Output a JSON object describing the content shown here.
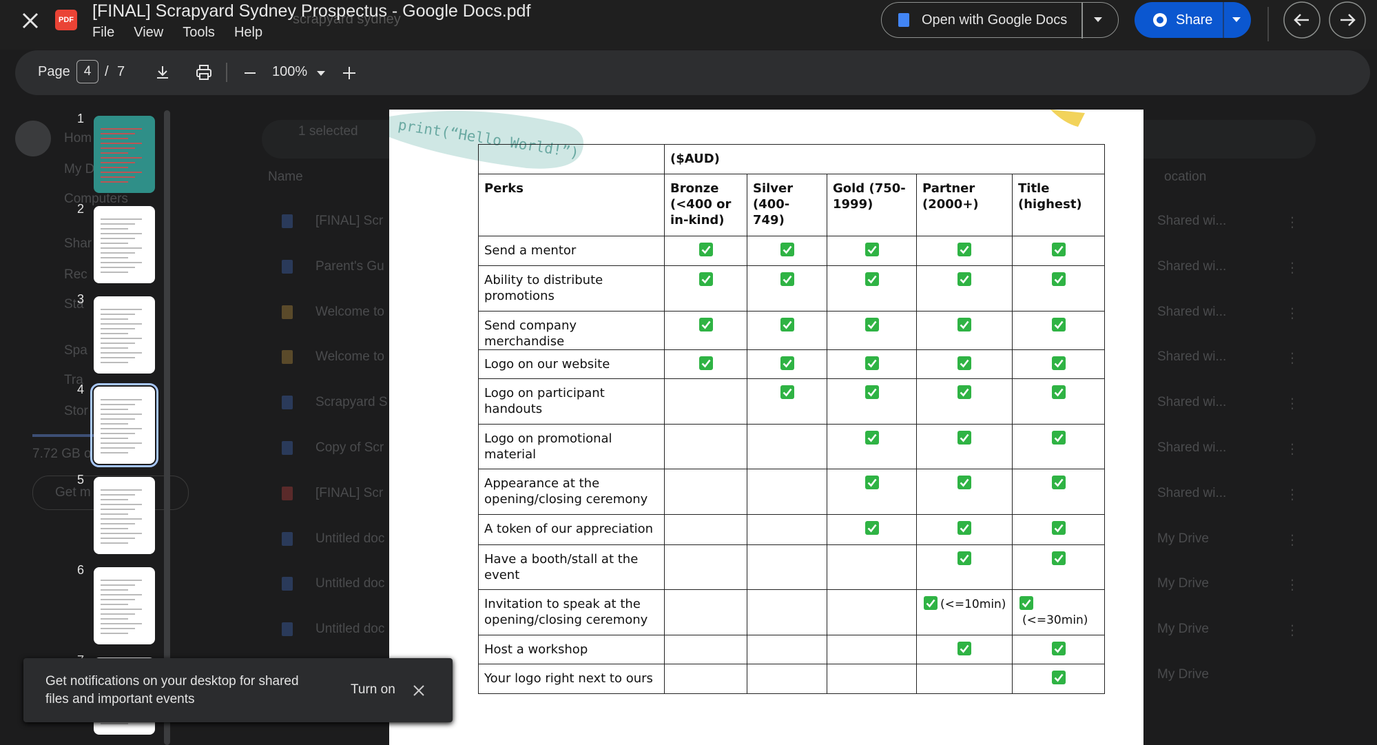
{
  "header": {
    "title": "[FINAL] Scrapyard Sydney Prospectus - Google Docs.pdf",
    "menu": [
      "File",
      "View",
      "Tools",
      "Help"
    ],
    "open_with": "Open with Google Docs",
    "share": "Share",
    "search_behind": "scrapyard sydney"
  },
  "toolbar": {
    "page_label": "Page",
    "current_page": 4,
    "separator": "/",
    "total_pages": 7,
    "zoom": "100%"
  },
  "thumbnails": [
    1,
    2,
    3,
    4,
    5,
    6,
    7
  ],
  "background": {
    "selected": "1 selected",
    "name_header": "Name",
    "location_header": "ocation",
    "sidebar": [
      "Hom",
      "My D",
      "Computers",
      "Shar",
      "Rec",
      "Sta",
      "Spa",
      "Tra",
      "Stor"
    ],
    "storage": "7.72 GB o",
    "get_more": "Get m",
    "files": [
      "[FINAL] Scr",
      "Parent's Gu",
      "Welcome to",
      "Welcome to",
      "Scrapyard S",
      "Copy of Scr",
      "[FINAL] Scr",
      "Untitled doc",
      "Untitled doc",
      "Untitled doc"
    ],
    "locations": [
      "Shared wi...",
      "Shared wi...",
      "Shared wi...",
      "Shared wi...",
      "Shared wi...",
      "Shared wi...",
      "Shared wi...",
      "My Drive",
      "My Drive",
      "My Drive",
      "My Drive"
    ]
  },
  "document": {
    "sticker": "print(“Hello World!”)",
    "table": {
      "currency": "($AUD)",
      "columns": [
        "Perks",
        "Bronze (<400 or in-kind)",
        "Silver (400-749)",
        "Gold (750-1999)",
        "Partner (2000+)",
        "Title (highest)"
      ],
      "rows": [
        {
          "perk": "Send a mentor",
          "tiers": [
            true,
            true,
            true,
            true,
            true
          ]
        },
        {
          "perk": "Ability to distribute promotions",
          "tiers": [
            true,
            true,
            true,
            true,
            true
          ]
        },
        {
          "perk": "Send company merchandise",
          "tiers": [
            true,
            true,
            true,
            true,
            true
          ]
        },
        {
          "perk": "Logo on our website",
          "tiers": [
            true,
            true,
            true,
            true,
            true
          ]
        },
        {
          "perk": "Logo on participant handouts",
          "tiers": [
            false,
            true,
            true,
            true,
            true
          ]
        },
        {
          "perk": "Logo on promotional material",
          "tiers": [
            false,
            false,
            true,
            true,
            true
          ]
        },
        {
          "perk": "Appearance at the opening/closing ceremony",
          "tiers": [
            false,
            false,
            true,
            true,
            true
          ]
        },
        {
          "perk": "A token of our appreciation",
          "tiers": [
            false,
            false,
            true,
            true,
            true
          ]
        },
        {
          "perk": "Have a booth/stall at the event",
          "tiers": [
            false,
            false,
            false,
            true,
            true
          ]
        },
        {
          "perk": "Invitation to speak at the opening/closing ceremony",
          "tiers": [
            false,
            false,
            false,
            true,
            true
          ],
          "notes": {
            "3": "(<=10min)",
            "4": "(<=30min)"
          }
        },
        {
          "perk": "Host a workshop",
          "tiers": [
            false,
            false,
            false,
            true,
            true
          ]
        },
        {
          "perk": "Your logo right next to ours",
          "tiers": [
            false,
            false,
            false,
            false,
            true
          ]
        }
      ]
    }
  },
  "notification": {
    "text": "Get notifications on your desktop for shared files and important events",
    "action": "Turn on"
  }
}
